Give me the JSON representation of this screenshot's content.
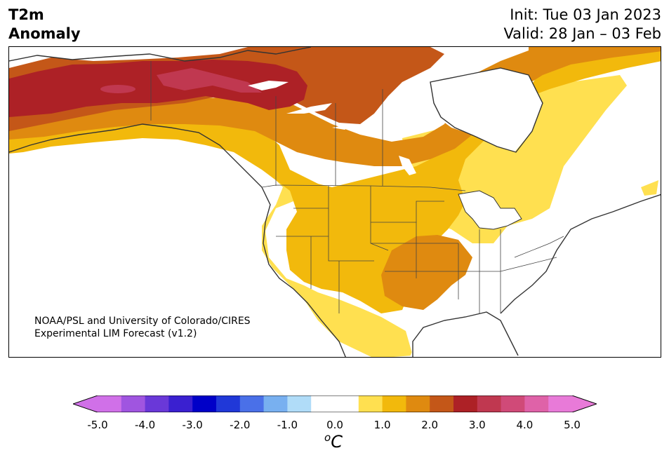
{
  "title": {
    "variable_line1": "T2m",
    "variable_line2": "Anomaly",
    "init": "Init: Tue 03 Jan 2023",
    "valid": "Valid: 28 Jan – 03 Feb"
  },
  "credit": {
    "line1": "NOAA/PSL and University of Colorado/CIRES",
    "line2": "Experimental LIM Forecast (v1.2)"
  },
  "colorbar": {
    "unit_base": "C",
    "unit_sup": "o",
    "ticks": [
      "-5.0",
      "-4.0",
      "-3.0",
      "-2.0",
      "-1.0",
      "0.0",
      "1.0",
      "2.0",
      "3.0",
      "4.0",
      "5.0"
    ],
    "colors": [
      "#d070e8",
      "#a055e0",
      "#6a38d8",
      "#3a20d0",
      "#0000c8",
      "#2038d8",
      "#4a70e8",
      "#78b0f0",
      "#b0dcf8",
      "#ffffff",
      "#ffffff",
      "#ffe050",
      "#f2b90c",
      "#df8a10",
      "#c45718",
      "#ad2126",
      "#c03850",
      "#d04a78",
      "#df62a8",
      "#e87ad8"
    ],
    "range": [
      -5.0,
      5.0
    ],
    "under_color": "#d070e8",
    "over_color": "#e87ad8"
  },
  "map": {
    "region": "North America",
    "levels": [
      {
        "label": "0.5-1.0",
        "color": "#ffe050"
      },
      {
        "label": "1.0-1.5",
        "color": "#f2b90c"
      },
      {
        "label": "1.5-2.0",
        "color": "#df8a10"
      },
      {
        "label": "2.0-2.5",
        "color": "#c45718"
      },
      {
        "label": "2.5-3.0",
        "color": "#ad2126"
      },
      {
        "label": "3.0-3.5",
        "color": "#c03850"
      }
    ]
  }
}
